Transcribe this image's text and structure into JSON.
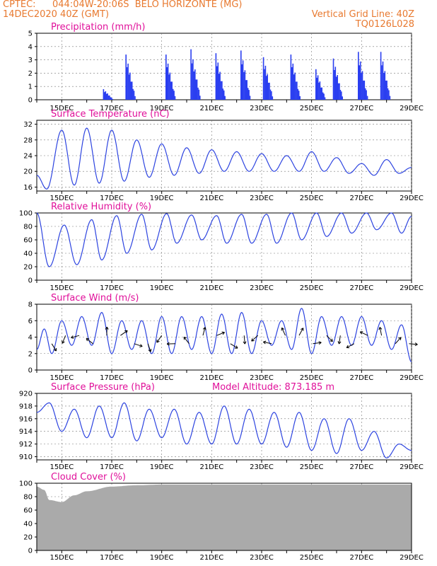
{
  "header": {
    "source": "CPTEC:",
    "location": "044:04W-20:06S  BELO HORIZONTE (MG)",
    "run": "14DEC2020 40Z (GMT)",
    "grid_note": "Vertical Grid Line: 40Z",
    "product_code": "TQ0126L028",
    "model_altitude": "Model Altitude: 873.185 m"
  },
  "x_labels": [
    "15DEC",
    "17DEC",
    "19DEC",
    "21DEC",
    "23DEC",
    "25DEC",
    "27DEC",
    "29DEC"
  ],
  "colors": {
    "line": "#2d44e0",
    "bar": "#2b3ff0",
    "cloud": "#aaaaaa",
    "title": "#e0109a",
    "header": "#e8792f"
  },
  "chart_data": [
    {
      "type": "bar",
      "title": "Precipitation (mm/h)",
      "ylim": [
        0,
        5
      ],
      "yticks": [
        0,
        1,
        2,
        3,
        4,
        5
      ],
      "series": [
        {
          "name": "",
          "peaks": [
            [
              2.7,
              0.8
            ],
            [
              3.6,
              3.4
            ],
            [
              5.2,
              3.4
            ],
            [
              6.2,
              3.8
            ],
            [
              7.2,
              3.5
            ],
            [
              8.2,
              3.7
            ],
            [
              9.1,
              3.2
            ],
            [
              10.2,
              3.4
            ],
            [
              11.2,
              2.3
            ],
            [
              11.9,
              3.1
            ],
            [
              12.9,
              3.6
            ],
            [
              13.8,
              3.6
            ]
          ]
        }
      ]
    },
    {
      "type": "line",
      "title": "Surface Temperature (nC)",
      "ylim": [
        15,
        33
      ],
      "yticks": [
        16,
        20,
        24,
        28,
        32
      ],
      "series": [
        {
          "name": "",
          "extrema": [
            [
              0,
              19
            ],
            [
              0.4,
              15.5
            ],
            [
              1,
              30.5
            ],
            [
              1.5,
              16.5
            ],
            [
              2,
              31
            ],
            [
              2.5,
              17
            ],
            [
              3,
              30.5
            ],
            [
              3.5,
              17.5
            ],
            [
              4,
              28
            ],
            [
              4.5,
              18.5
            ],
            [
              5,
              27
            ],
            [
              5.5,
              19
            ],
            [
              6,
              26
            ],
            [
              6.5,
              19.5
            ],
            [
              7,
              25.5
            ],
            [
              7.5,
              20
            ],
            [
              8,
              25
            ],
            [
              8.5,
              20
            ],
            [
              9,
              24.5
            ],
            [
              9.5,
              20
            ],
            [
              10,
              24
            ],
            [
              10.5,
              20
            ],
            [
              11,
              25
            ],
            [
              11.5,
              20
            ],
            [
              12,
              23.5
            ],
            [
              12.5,
              19.5
            ],
            [
              13,
              22
            ],
            [
              13.5,
              19
            ],
            [
              14,
              23
            ],
            [
              14.5,
              19.5
            ],
            [
              15,
              21
            ]
          ]
        }
      ]
    },
    {
      "type": "line",
      "title": "Relative Humidity (%)",
      "ylim": [
        0,
        100
      ],
      "yticks": [
        0,
        20,
        40,
        60,
        80,
        100
      ],
      "series": [
        {
          "name": "",
          "extrema": [
            [
              0,
              100
            ],
            [
              0.5,
              20
            ],
            [
              1.1,
              82
            ],
            [
              1.6,
              23
            ],
            [
              2.2,
              90
            ],
            [
              2.6,
              30
            ],
            [
              3.2,
              96
            ],
            [
              3.6,
              40
            ],
            [
              4.2,
              98
            ],
            [
              4.6,
              45
            ],
            [
              5.2,
              99
            ],
            [
              5.6,
              55
            ],
            [
              6.2,
              97
            ],
            [
              6.6,
              60
            ],
            [
              7.2,
              96
            ],
            [
              7.6,
              55
            ],
            [
              8.2,
              98
            ],
            [
              8.6,
              55
            ],
            [
              9.2,
              98
            ],
            [
              9.6,
              55
            ],
            [
              10.2,
              100
            ],
            [
              10.6,
              60
            ],
            [
              11.2,
              100
            ],
            [
              11.6,
              65
            ],
            [
              12.2,
              100
            ],
            [
              12.6,
              70
            ],
            [
              13.2,
              100
            ],
            [
              13.6,
              75
            ],
            [
              14.2,
              100
            ],
            [
              14.6,
              70
            ],
            [
              15,
              95
            ]
          ]
        }
      ]
    },
    {
      "type": "line",
      "title": "Surface Wind (m/s)",
      "ylim": [
        0,
        8
      ],
      "yticks": [
        0,
        2,
        4,
        6,
        8
      ],
      "series": [
        {
          "name": "",
          "extrema": [
            [
              0,
              2.5
            ],
            [
              0.3,
              5
            ],
            [
              0.6,
              2
            ],
            [
              1,
              6
            ],
            [
              1.4,
              3
            ],
            [
              1.8,
              6.5
            ],
            [
              2.2,
              3
            ],
            [
              2.6,
              7
            ],
            [
              3,
              2
            ],
            [
              3.4,
              6
            ],
            [
              3.8,
              2.5
            ],
            [
              4.2,
              6
            ],
            [
              4.6,
              2
            ],
            [
              5,
              6.5
            ],
            [
              5.4,
              2
            ],
            [
              5.8,
              6.5
            ],
            [
              6.2,
              2.5
            ],
            [
              6.6,
              6.5
            ],
            [
              7,
              2
            ],
            [
              7.4,
              6.8
            ],
            [
              7.8,
              2
            ],
            [
              8.2,
              7
            ],
            [
              8.6,
              2
            ],
            [
              9,
              6
            ],
            [
              9.4,
              3
            ],
            [
              9.8,
              6
            ],
            [
              10.2,
              2.5
            ],
            [
              10.6,
              7.5
            ],
            [
              11,
              2
            ],
            [
              11.4,
              6.5
            ],
            [
              11.8,
              3
            ],
            [
              12.2,
              6.5
            ],
            [
              12.6,
              3
            ],
            [
              13,
              6.5
            ],
            [
              13.4,
              3
            ],
            [
              13.8,
              6
            ],
            [
              14.2,
              2.5
            ],
            [
              14.6,
              5.5
            ],
            [
              15,
              1
            ]
          ]
        }
      ]
    },
    {
      "type": "line",
      "title": "Surface Pressure (hPa)",
      "ylim": [
        909.5,
        920
      ],
      "yticks": [
        910,
        912,
        914,
        916,
        918,
        920
      ],
      "series": [
        {
          "name": "",
          "extrema": [
            [
              0,
              917
            ],
            [
              0.5,
              918.5
            ],
            [
              1,
              914
            ],
            [
              1.5,
              917.5
            ],
            [
              2,
              913
            ],
            [
              2.5,
              918
            ],
            [
              3,
              913
            ],
            [
              3.5,
              918.5
            ],
            [
              4,
              912.5
            ],
            [
              4.5,
              917.5
            ],
            [
              5,
              913
            ],
            [
              5.5,
              917.5
            ],
            [
              6,
              912
            ],
            [
              6.5,
              917
            ],
            [
              7,
              912
            ],
            [
              7.5,
              918
            ],
            [
              8,
              912
            ],
            [
              8.5,
              917.5
            ],
            [
              9,
              912
            ],
            [
              9.5,
              917
            ],
            [
              10,
              911.5
            ],
            [
              10.5,
              917
            ],
            [
              11,
              911
            ],
            [
              11.5,
              916
            ],
            [
              12,
              910.5
            ],
            [
              12.5,
              916
            ],
            [
              13,
              911
            ],
            [
              13.5,
              914
            ],
            [
              14,
              909.8
            ],
            [
              14.5,
              912
            ],
            [
              15,
              911
            ]
          ]
        }
      ]
    },
    {
      "type": "area",
      "title": "Cloud Cover (%)",
      "ylim": [
        0,
        100
      ],
      "yticks": [
        0,
        20,
        40,
        60,
        80,
        100
      ],
      "series": [
        {
          "name": "",
          "extrema": [
            [
              0,
              95
            ],
            [
              0.3,
              90
            ],
            [
              0.5,
              75
            ],
            [
              1,
              72
            ],
            [
              1.5,
              82
            ],
            [
              2,
              88
            ],
            [
              3,
              95
            ],
            [
              4,
              97
            ],
            [
              5,
              98
            ],
            [
              6,
              98
            ],
            [
              8,
              98
            ],
            [
              10,
              98
            ],
            [
              12,
              98
            ],
            [
              14,
              98
            ],
            [
              15,
              98
            ]
          ]
        }
      ]
    }
  ]
}
